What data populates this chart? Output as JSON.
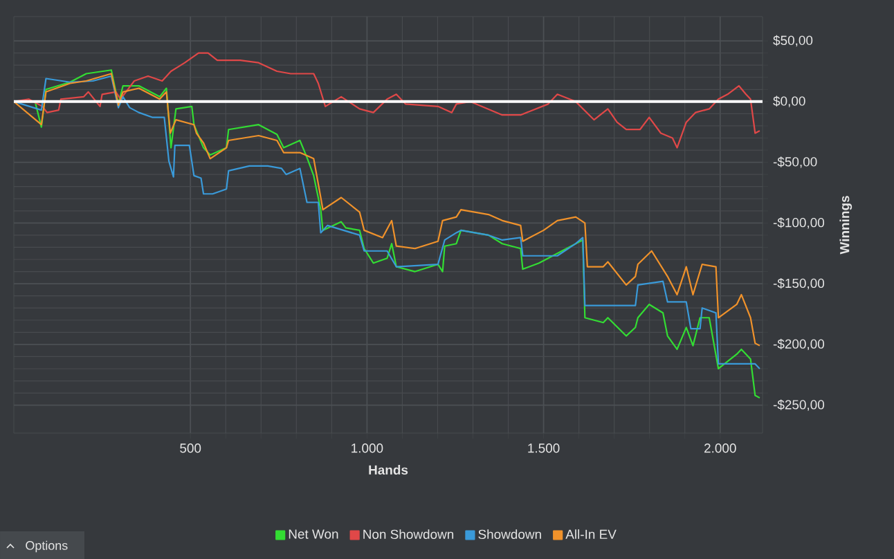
{
  "chart_data": {
    "type": "line",
    "xlabel": "Hands",
    "ylabel": "Winnings",
    "xlim": [
      0,
      2120
    ],
    "ylim": [
      -273,
      70
    ],
    "xticks": [
      {
        "value": 500,
        "label": "500"
      },
      {
        "value": 1000,
        "label": "1.000"
      },
      {
        "value": 1500,
        "label": "1.500"
      },
      {
        "value": 2000,
        "label": "2.000"
      }
    ],
    "yticks": [
      {
        "value": -250,
        "label": "-$250,00"
      },
      {
        "value": -200,
        "label": "-$200,00"
      },
      {
        "value": -150,
        "label": "-$150,00"
      },
      {
        "value": -100,
        "label": "-$100,00"
      },
      {
        "value": -50,
        "label": "-$50,00"
      },
      {
        "value": 0,
        "label": "$0,00"
      },
      {
        "value": 50,
        "label": "$50,00"
      }
    ],
    "grid": true,
    "legend": "bottom",
    "marker": "none",
    "line_style": "solid",
    "ref_lines": [
      {
        "axis": "y",
        "value": 0,
        "color": "#ffffff"
      }
    ],
    "annotations": [
      "Options"
    ],
    "series": [
      {
        "name": "Net Won",
        "color": "#33dd33",
        "x": [
          0,
          60,
          78,
          91,
          159,
          205,
          276,
          296,
          309,
          354,
          413,
          432,
          445,
          459,
          504,
          510,
          537,
          556,
          602,
          608,
          693,
          745,
          764,
          810,
          830,
          849,
          869,
          875,
          927,
          940,
          979,
          992,
          1018,
          1057,
          1070,
          1083,
          1136,
          1201,
          1214,
          1220,
          1253,
          1266,
          1344,
          1383,
          1435,
          1441,
          1487,
          1539,
          1591,
          1611,
          1617,
          1669,
          1682,
          1734,
          1760,
          1767,
          1799,
          1838,
          1851,
          1878,
          1904,
          1923,
          1943,
          1969,
          1995,
          2047,
          2060,
          2086,
          2099,
          2112
        ],
        "values": [
          0,
          0,
          -21,
          10,
          16,
          23,
          26,
          -2,
          13,
          13,
          4,
          11,
          -38,
          -6,
          -4,
          -19,
          -38,
          -44,
          -38,
          -23,
          -19,
          -27,
          -38,
          -32,
          -46,
          -61,
          -89,
          -106,
          -99,
          -104,
          -106,
          -121,
          -133,
          -129,
          -117,
          -136,
          -140,
          -134,
          -140,
          -119,
          -117,
          -106,
          -110,
          -117,
          -121,
          -138,
          -133,
          -125,
          -117,
          -114,
          -178,
          -182,
          -178,
          -193,
          -186,
          -178,
          -167,
          -174,
          -193,
          -204,
          -186,
          -201,
          -178,
          -178,
          -220,
          -208,
          -204,
          -212,
          -242,
          -244
        ]
      },
      {
        "name": "Non Showdown",
        "color": "#e04848",
        "x": [
          0,
          42,
          81,
          94,
          127,
          133,
          198,
          211,
          244,
          250,
          289,
          302,
          341,
          380,
          420,
          445,
          484,
          523,
          550,
          576,
          641,
          693,
          745,
          784,
          849,
          862,
          882,
          927,
          979,
          1018,
          1057,
          1083,
          1109,
          1201,
          1240,
          1253,
          1292,
          1383,
          1435,
          1513,
          1539,
          1591,
          1643,
          1669,
          1682,
          1708,
          1734,
          1773,
          1799,
          1832,
          1865,
          1878,
          1904,
          1930,
          1969,
          1995,
          2021,
          2053,
          2073,
          2086,
          2099,
          2112
        ],
        "values": [
          0,
          2,
          -4,
          -9,
          -7,
          2,
          4,
          8,
          -4,
          6,
          8,
          2,
          17,
          21,
          17,
          25,
          32,
          40,
          40,
          34,
          34,
          32,
          25,
          23,
          23,
          15,
          -4,
          4,
          -6,
          -9,
          2,
          6,
          -2,
          -4,
          -9,
          -2,
          0,
          -11,
          -11,
          -2,
          6,
          0,
          -15,
          -9,
          -6,
          -17,
          -23,
          -23,
          -13,
          -26,
          -30,
          -38,
          -17,
          -9,
          -6,
          2,
          6,
          13,
          6,
          2,
          -26,
          -24
        ]
      },
      {
        "name": "Showdown",
        "color": "#3a9ad9",
        "x": [
          0,
          78,
          91,
          159,
          224,
          276,
          296,
          309,
          328,
          354,
          393,
          426,
          439,
          452,
          456,
          497,
          510,
          530,
          537,
          563,
          602,
          608,
          667,
          719,
          758,
          771,
          810,
          830,
          862,
          869,
          888,
          979,
          992,
          1057,
          1083,
          1201,
          1220,
          1253,
          1266,
          1344,
          1383,
          1435,
          1441,
          1539,
          1591,
          1611,
          1617,
          1760,
          1767,
          1838,
          1851,
          1904,
          1917,
          1943,
          1949,
          1988,
          1995,
          2099,
          2112
        ],
        "values": [
          0,
          -7,
          19,
          16,
          17,
          21,
          -5,
          4,
          -5,
          -9,
          -13,
          -13,
          -49,
          -62,
          -36,
          -36,
          -61,
          -63,
          -76,
          -76,
          -72,
          -57,
          -53,
          -53,
          -55,
          -60,
          -55,
          -83,
          -83,
          -108,
          -102,
          -110,
          -123,
          -123,
          -136,
          -134,
          -114,
          -108,
          -106,
          -110,
          -114,
          -112,
          -127,
          -127,
          -117,
          -112,
          -168,
          -168,
          -151,
          -148,
          -165,
          -165,
          -187,
          -187,
          -170,
          -174,
          -216,
          -216,
          -220
        ]
      },
      {
        "name": "All-In EV",
        "color": "#f0922b",
        "x": [
          0,
          78,
          91,
          159,
          205,
          276,
          296,
          309,
          354,
          413,
          432,
          443,
          459,
          510,
          517,
          537,
          556,
          602,
          608,
          693,
          745,
          764,
          810,
          849,
          869,
          875,
          927,
          979,
          992,
          1044,
          1070,
          1083,
          1136,
          1201,
          1214,
          1253,
          1266,
          1344,
          1383,
          1435,
          1441,
          1500,
          1539,
          1591,
          1617,
          1624,
          1669,
          1682,
          1734,
          1760,
          1767,
          1806,
          1851,
          1878,
          1904,
          1923,
          1949,
          1988,
          1995,
          2047,
          2060,
          2086,
          2099,
          2112
        ],
        "values": [
          0,
          -19,
          8,
          15,
          17,
          23,
          -3,
          8,
          11,
          2,
          8,
          -26,
          -15,
          -19,
          -26,
          -34,
          -47,
          -38,
          -32,
          -28,
          -32,
          -42,
          -42,
          -47,
          -79,
          -89,
          -79,
          -91,
          -106,
          -112,
          -98,
          -119,
          -121,
          -115,
          -98,
          -95,
          -89,
          -93,
          -98,
          -102,
          -115,
          -106,
          -98,
          -95,
          -100,
          -136,
          -136,
          -132,
          -151,
          -144,
          -134,
          -123,
          -144,
          -159,
          -136,
          -159,
          -134,
          -136,
          -178,
          -167,
          -159,
          -178,
          -199,
          -201
        ]
      }
    ]
  }
}
